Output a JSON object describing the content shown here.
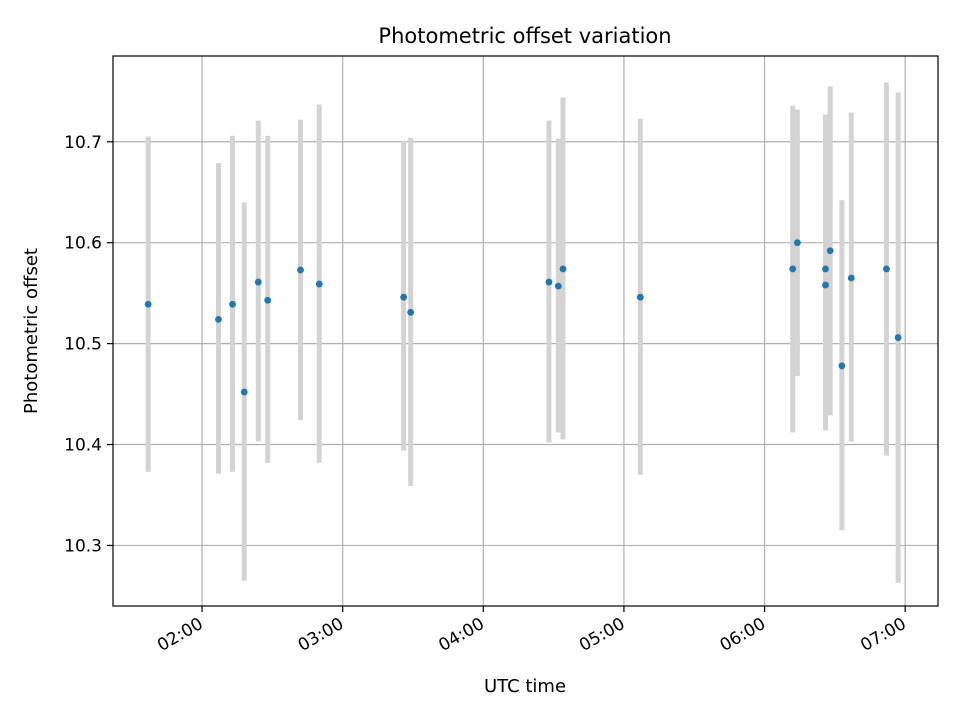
{
  "chart_data": {
    "type": "scatter",
    "title": "Photometric offset variation",
    "xlabel": "UTC time",
    "ylabel": "Photometric offset",
    "x_ticks": [
      "02:00",
      "03:00",
      "04:00",
      "05:00",
      "06:00",
      "07:00"
    ],
    "y_ticks": [
      "10.3",
      "10.4",
      "10.5",
      "10.6",
      "10.7"
    ],
    "xlim": [
      "01:22",
      "07:14"
    ],
    "ylim": [
      10.24,
      10.785
    ],
    "grid": true,
    "point_color": "#1f77b4",
    "errorbar_color": "#d3d3d3",
    "series": [
      {
        "points": [
          {
            "x": "01:37",
            "y": 10.539,
            "low": 10.373,
            "high": 10.705
          },
          {
            "x": "02:07",
            "y": 10.524,
            "low": 10.371,
            "high": 10.679
          },
          {
            "x": "02:13",
            "y": 10.539,
            "low": 10.373,
            "high": 10.706
          },
          {
            "x": "02:18",
            "y": 10.452,
            "low": 10.265,
            "high": 10.64
          },
          {
            "x": "02:24",
            "y": 10.561,
            "low": 10.403,
            "high": 10.721
          },
          {
            "x": "02:28",
            "y": 10.543,
            "low": 10.382,
            "high": 10.706
          },
          {
            "x": "02:42",
            "y": 10.573,
            "low": 10.424,
            "high": 10.722
          },
          {
            "x": "02:50",
            "y": 10.559,
            "low": 10.382,
            "high": 10.737
          },
          {
            "x": "03:26",
            "y": 10.546,
            "low": 10.394,
            "high": 10.701
          },
          {
            "x": "03:29",
            "y": 10.531,
            "low": 10.359,
            "high": 10.704
          },
          {
            "x": "04:28",
            "y": 10.561,
            "low": 10.402,
            "high": 10.721
          },
          {
            "x": "04:32",
            "y": 10.557,
            "low": 10.412,
            "high": 10.703
          },
          {
            "x": "04:34",
            "y": 10.574,
            "low": 10.405,
            "high": 10.744
          },
          {
            "x": "05:07",
            "y": 10.546,
            "low": 10.37,
            "high": 10.723
          },
          {
            "x": "06:12",
            "y": 10.574,
            "low": 10.412,
            "high": 10.736
          },
          {
            "x": "06:14",
            "y": 10.6,
            "low": 10.468,
            "high": 10.732
          },
          {
            "x": "06:26",
            "y": 10.558,
            "low": 10.414,
            "high": 10.702
          },
          {
            "x": "06:26",
            "y": 10.574,
            "low": 10.42,
            "high": 10.727
          },
          {
            "x": "06:28",
            "y": 10.592,
            "low": 10.429,
            "high": 10.755
          },
          {
            "x": "06:33",
            "y": 10.478,
            "low": 10.315,
            "high": 10.642
          },
          {
            "x": "06:37",
            "y": 10.565,
            "low": 10.403,
            "high": 10.729
          },
          {
            "x": "06:52",
            "y": 10.574,
            "low": 10.389,
            "high": 10.759
          },
          {
            "x": "06:57",
            "y": 10.506,
            "low": 10.263,
            "high": 10.749
          }
        ]
      }
    ]
  }
}
